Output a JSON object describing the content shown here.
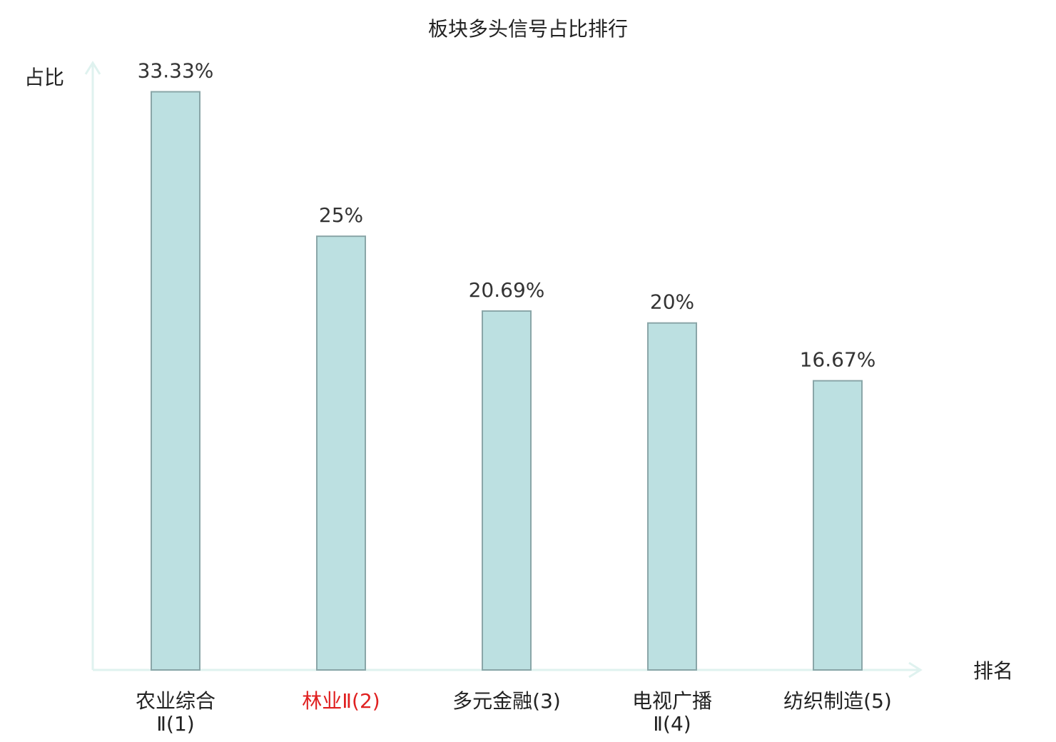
{
  "chart_data": {
    "type": "bar",
    "title": "板块多头信号占比排行",
    "y_label": "占比",
    "x_label": "排名",
    "categories": [
      "农业综合Ⅱ(1)",
      "林业Ⅱ(2)",
      "多元金融(3)",
      "电视广播Ⅱ(4)",
      "纺织制造(5)"
    ],
    "category_colors": [
      "#222222",
      "#e02020",
      "#222222",
      "#222222",
      "#222222"
    ],
    "values": [
      33.33,
      25,
      20.69,
      20,
      16.67
    ],
    "value_labels": [
      "33.33%",
      "25%",
      "20.69%",
      "20%",
      "16.67%"
    ],
    "color": "#bce0e1",
    "edge_color": "#8aa6a8",
    "axis_color": "#dff2ef",
    "ylim": [
      0,
      35
    ]
  }
}
